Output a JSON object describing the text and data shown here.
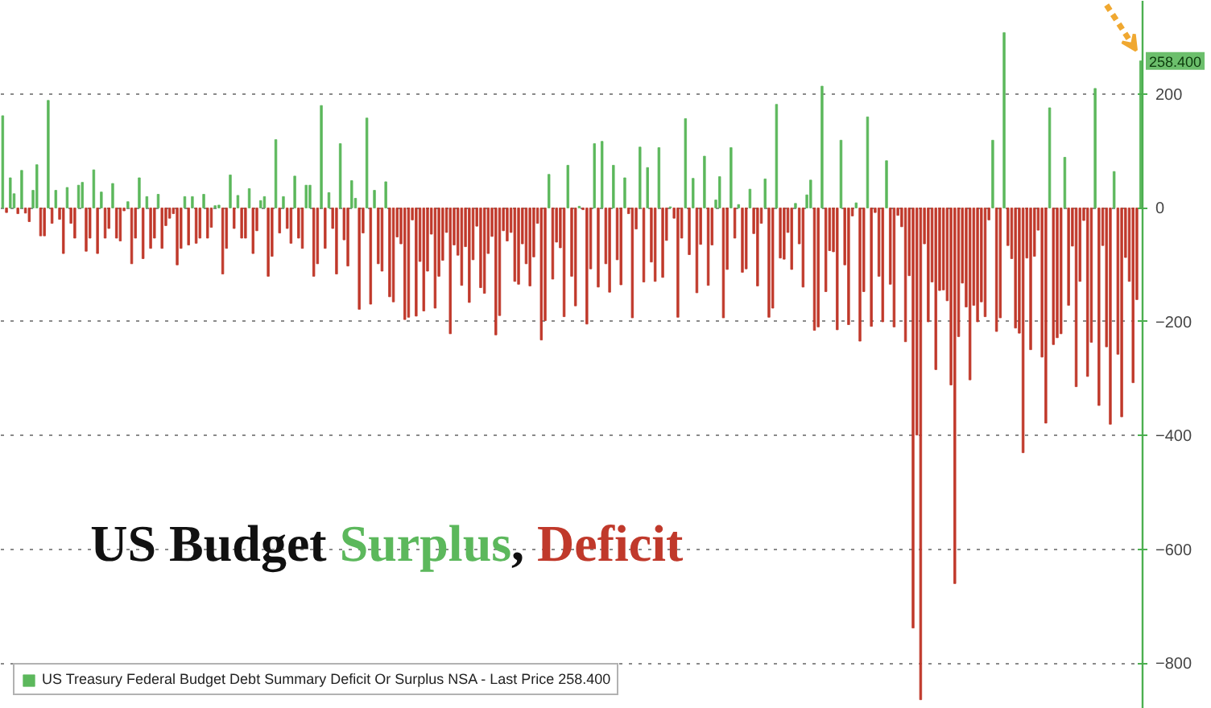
{
  "chart_data": {
    "type": "bar",
    "title": "US Budget Surplus, Deficit",
    "categories": [
      null,
      null,
      null,
      null,
      null,
      null,
      null,
      null,
      null,
      null,
      null,
      null,
      null,
      null,
      null,
      null,
      null,
      null,
      null,
      null,
      null,
      null,
      null,
      null,
      null,
      null,
      null,
      null,
      null,
      null,
      null,
      null,
      null,
      null,
      null,
      null,
      null,
      null,
      null,
      null,
      null,
      null,
      null,
      null,
      null,
      null,
      null,
      null,
      null,
      null,
      null,
      null,
      null,
      null,
      null,
      null,
      null,
      null,
      null,
      null,
      null,
      null,
      null,
      null,
      null,
      null,
      null,
      null,
      null,
      null,
      null,
      null,
      null,
      null,
      null,
      null,
      null,
      null,
      null,
      null,
      null,
      null,
      null,
      null,
      null,
      null,
      null,
      null,
      null,
      null,
      null,
      null,
      null,
      null,
      null,
      null,
      null,
      null,
      null,
      null,
      null,
      null,
      null,
      null,
      null,
      null,
      null,
      null,
      null,
      null,
      null,
      null,
      null,
      null,
      null,
      null,
      null,
      null,
      null,
      null,
      null,
      null,
      null,
      null,
      null,
      null,
      null,
      null,
      null,
      null,
      null,
      null,
      null,
      null,
      null,
      null,
      null,
      null,
      null,
      null,
      null,
      null,
      null,
      null,
      null,
      null,
      null,
      null,
      null,
      null,
      null,
      null,
      null,
      null,
      null,
      null,
      null,
      null,
      null,
      null,
      null,
      null,
      null,
      null,
      null,
      null,
      null,
      null,
      null,
      null,
      null,
      null,
      null,
      null,
      null,
      null,
      null,
      null,
      null,
      null,
      null,
      null,
      null,
      null,
      null,
      null,
      null,
      null,
      null,
      null,
      null,
      null,
      null,
      null,
      null,
      null,
      null,
      null,
      null,
      null,
      null,
      null,
      null,
      null,
      null,
      null,
      null,
      null,
      null,
      null,
      null,
      null,
      null,
      null,
      null,
      null,
      null,
      null,
      null,
      null,
      null,
      null,
      null,
      null,
      null,
      null,
      null,
      null,
      null,
      null,
      null,
      null,
      null,
      null,
      null,
      null,
      null,
      null,
      null,
      null,
      null,
      null,
      null,
      null,
      null,
      null,
      null,
      null,
      null,
      null,
      null,
      null,
      null,
      null,
      null,
      null,
      null,
      null,
      null,
      null,
      null,
      null,
      null,
      null,
      null,
      null,
      null,
      null,
      null,
      null,
      null,
      null,
      null,
      null,
      null,
      null,
      null,
      null,
      null,
      null,
      null,
      null,
      null,
      null,
      null,
      null,
      null,
      null,
      null,
      null,
      null,
      null,
      null,
      null,
      null,
      null,
      null,
      null,
      null,
      null,
      null
    ],
    "series": [
      {
        "name": "US Treasury Federal Budget Debt Summary Deficit Or Surplus NSA - Last Price 258.400",
        "values": [
          162,
          -8,
          53,
          25,
          -10,
          66,
          -9,
          -24,
          31,
          76,
          -49,
          -49,
          189,
          -27,
          31,
          -20,
          -80,
          36,
          -27,
          -53,
          40,
          45,
          -76,
          -53,
          67,
          -80,
          28,
          -53,
          -36,
          43,
          -53,
          -58,
          -5,
          11,
          -98,
          -53,
          53,
          -89,
          20,
          -71,
          -53,
          24,
          -71,
          -31,
          -18,
          -10,
          -100,
          -71,
          20,
          -65,
          20,
          -62,
          -53,
          24,
          -53,
          -34,
          4,
          5,
          -116,
          -71,
          58,
          -36,
          22,
          -53,
          -53,
          34,
          -80,
          -40,
          13,
          20,
          -120,
          -85,
          120,
          -44,
          20,
          -36,
          -62,
          56,
          -53,
          -71,
          40,
          40,
          -120,
          -98,
          180,
          -71,
          27,
          -36,
          -116,
          113,
          -56,
          -102,
          48,
          17,
          -178,
          -44,
          158,
          -169,
          31,
          -98,
          -111,
          46,
          -156,
          -165,
          -51,
          -63,
          -196,
          -192,
          -21,
          -190,
          -94,
          -181,
          -111,
          -46,
          -176,
          -120,
          -92,
          -43,
          -221,
          -65,
          -83,
          -136,
          -68,
          -166,
          -91,
          -32,
          -140,
          -150,
          -80,
          -50,
          -223,
          -189,
          -40,
          -58,
          -43,
          -129,
          -134,
          -63,
          -98,
          -137,
          -86,
          -27,
          -232,
          -198,
          59,
          -125,
          -60,
          -70,
          -191,
          75,
          -120,
          -172,
          3,
          -3,
          -204,
          -107,
          113,
          -139,
          117,
          -98,
          -148,
          75,
          -91,
          -135,
          53,
          -10,
          -193,
          -37,
          107,
          -130,
          71,
          -95,
          -129,
          106,
          -122,
          -57,
          2,
          -18,
          -192,
          -53,
          157,
          -82,
          52,
          -149,
          -64,
          91,
          -136,
          -65,
          14,
          55,
          -193,
          -108,
          106,
          -53,
          6,
          -113,
          -107,
          33,
          -45,
          -137,
          -27,
          51,
          -192,
          -176,
          182,
          -88,
          -90,
          -43,
          -108,
          8,
          -63,
          -139,
          23,
          49,
          -215,
          -209,
          214,
          -147,
          -75,
          -77,
          -214,
          119,
          -100,
          -205,
          -14,
          9,
          -234,
          -147,
          160,
          -208,
          -8,
          -120,
          -200,
          83,
          -134,
          -209,
          -13,
          -33,
          -235,
          -119,
          -738,
          -399,
          -864,
          -63,
          -200,
          -130,
          -284,
          -145,
          -144,
          -163,
          -311,
          -660,
          -226,
          -132,
          -174,
          -302,
          -171,
          -200,
          -165,
          -191,
          -21,
          119,
          -217,
          -193,
          308,
          -66,
          -89,
          -211,
          -220,
          -430,
          -88,
          -249,
          -85,
          -39,
          -262,
          -378,
          176,
          -240,
          -228,
          -221,
          89,
          -171,
          -67,
          -314,
          -129,
          -22,
          -296,
          -236,
          210,
          -347,
          -66,
          -244,
          -380,
          64,
          -257,
          -367,
          -87,
          -129,
          -307,
          -161,
          258.4
        ],
        "colors": [
          "#5cb85c",
          "#c0392b",
          "#5cb85c",
          "#5cb85c",
          "#c0392b",
          "#5cb85c",
          "#c0392b",
          "#c0392b",
          "#5cb85c",
          "#5cb85c",
          "#c0392b",
          "#c0392b",
          "#5cb85c",
          "#c0392b",
          "#5cb85c",
          "#c0392b",
          "#c0392b",
          "#5cb85c",
          "#c0392b",
          "#c0392b",
          "#5cb85c",
          "#5cb85c",
          "#c0392b",
          "#c0392b",
          "#5cb85c",
          "#c0392b",
          "#5cb85c",
          "#c0392b",
          "#c0392b",
          "#5cb85c",
          "#c0392b",
          "#c0392b",
          "#c0392b",
          "#5cb85c",
          "#c0392b",
          "#c0392b",
          "#5cb85c",
          "#c0392b",
          "#5cb85c",
          "#c0392b",
          "#c0392b",
          "#5cb85c",
          "#c0392b",
          "#c0392b",
          "#c0392b",
          "#c0392b",
          "#c0392b",
          "#c0392b",
          "#5cb85c",
          "#c0392b",
          "#5cb85c",
          "#c0392b",
          "#c0392b",
          "#5cb85c",
          "#c0392b",
          "#c0392b",
          "#5cb85c",
          "#5cb85c",
          "#c0392b",
          "#c0392b",
          "#5cb85c",
          "#c0392b",
          "#5cb85c",
          "#c0392b",
          "#c0392b",
          "#5cb85c",
          "#c0392b",
          "#c0392b",
          "#5cb85c",
          "#5cb85c",
          "#c0392b",
          "#c0392b",
          "#5cb85c",
          "#c0392b",
          "#5cb85c",
          "#c0392b",
          "#c0392b",
          "#5cb85c",
          "#c0392b",
          "#c0392b",
          "#5cb85c",
          "#5cb85c",
          "#c0392b",
          "#c0392b",
          "#5cb85c",
          "#c0392b",
          "#5cb85c",
          "#c0392b",
          "#c0392b",
          "#5cb85c",
          "#c0392b",
          "#c0392b",
          "#5cb85c",
          "#5cb85c",
          "#c0392b",
          "#c0392b",
          "#5cb85c",
          "#c0392b",
          "#5cb85c",
          "#c0392b",
          "#c0392b",
          "#5cb85c",
          "#c0392b",
          "#c0392b",
          "#c0392b",
          "#c0392b",
          "#c0392b",
          "#c0392b",
          "#c0392b",
          "#c0392b",
          "#c0392b",
          "#c0392b",
          "#c0392b",
          "#c0392b",
          "#c0392b",
          "#c0392b",
          "#c0392b",
          "#c0392b",
          "#c0392b",
          "#c0392b",
          "#c0392b",
          "#c0392b",
          "#c0392b",
          "#c0392b",
          "#c0392b",
          "#c0392b",
          "#c0392b",
          "#c0392b",
          "#c0392b",
          "#c0392b",
          "#c0392b",
          "#c0392b",
          "#c0392b",
          "#c0392b",
          "#c0392b",
          "#c0392b",
          "#c0392b",
          "#c0392b",
          "#c0392b",
          "#c0392b",
          "#c0392b",
          "#c0392b",
          "#c0392b",
          "#c0392b",
          "#5cb85c",
          "#c0392b",
          "#c0392b",
          "#c0392b",
          "#c0392b",
          "#5cb85c",
          "#c0392b",
          "#c0392b",
          "#5cb85c",
          "#c0392b",
          "#c0392b",
          "#c0392b",
          "#5cb85c",
          "#c0392b",
          "#5cb85c",
          "#c0392b",
          "#c0392b",
          "#5cb85c",
          "#c0392b",
          "#c0392b",
          "#5cb85c",
          "#c0392b",
          "#c0392b",
          "#c0392b",
          "#5cb85c",
          "#c0392b",
          "#5cb85c",
          "#c0392b",
          "#c0392b",
          "#5cb85c",
          "#c0392b",
          "#c0392b",
          "#5cb85c",
          "#c0392b",
          "#c0392b",
          "#c0392b",
          "#5cb85c",
          "#c0392b",
          "#5cb85c",
          "#c0392b",
          "#c0392b",
          "#5cb85c",
          "#c0392b",
          "#c0392b",
          "#5cb85c",
          "#5cb85c",
          "#c0392b",
          "#c0392b",
          "#5cb85c",
          "#c0392b",
          "#5cb85c",
          "#c0392b",
          "#c0392b",
          "#5cb85c",
          "#c0392b",
          "#c0392b",
          "#c0392b",
          "#5cb85c",
          "#c0392b",
          "#c0392b",
          "#5cb85c",
          "#c0392b",
          "#c0392b",
          "#c0392b",
          "#c0392b",
          "#5cb85c",
          "#c0392b",
          "#c0392b",
          "#5cb85c",
          "#5cb85c",
          "#c0392b",
          "#c0392b",
          "#5cb85c",
          "#c0392b",
          "#c0392b",
          "#c0392b",
          "#c0392b",
          "#5cb85c",
          "#c0392b",
          "#c0392b",
          "#c0392b",
          "#5cb85c",
          "#c0392b",
          "#c0392b",
          "#5cb85c",
          "#c0392b",
          "#c0392b",
          "#c0392b",
          "#c0392b",
          "#5cb85c",
          "#c0392b",
          "#c0392b",
          "#c0392b",
          "#c0392b",
          "#c0392b",
          "#c0392b",
          "#c0392b",
          "#c0392b",
          "#c0392b",
          "#c0392b",
          "#c0392b",
          "#c0392b",
          "#c0392b",
          "#c0392b",
          "#c0392b",
          "#c0392b",
          "#c0392b",
          "#c0392b",
          "#c0392b",
          "#c0392b",
          "#c0392b",
          "#c0392b",
          "#c0392b",
          "#c0392b",
          "#c0392b",
          "#c0392b",
          "#c0392b",
          "#5cb85c",
          "#c0392b",
          "#c0392b",
          "#5cb85c",
          "#c0392b",
          "#c0392b",
          "#c0392b",
          "#c0392b",
          "#c0392b",
          "#c0392b",
          "#c0392b",
          "#c0392b",
          "#c0392b",
          "#c0392b",
          "#c0392b",
          "#5cb85c",
          "#c0392b",
          "#c0392b",
          "#c0392b",
          "#5cb85c",
          "#c0392b",
          "#c0392b",
          "#c0392b",
          "#c0392b",
          "#c0392b",
          "#c0392b",
          "#c0392b",
          "#5cb85c",
          "#c0392b",
          "#c0392b",
          "#c0392b",
          "#c0392b",
          "#5cb85c",
          "#c0392b",
          "#c0392b",
          "#c0392b",
          "#c0392b",
          "#c0392b",
          "#c0392b",
          "#5cb85c"
        ]
      }
    ],
    "ylim": [
      -880,
      364
    ],
    "yticks": [
      -800,
      -600,
      -400,
      -200,
      0,
      200
    ],
    "grid": "y",
    "legend": "bottom left",
    "annotations": [
      {
        "text": "258.400",
        "y": 258.4
      }
    ]
  }
}
